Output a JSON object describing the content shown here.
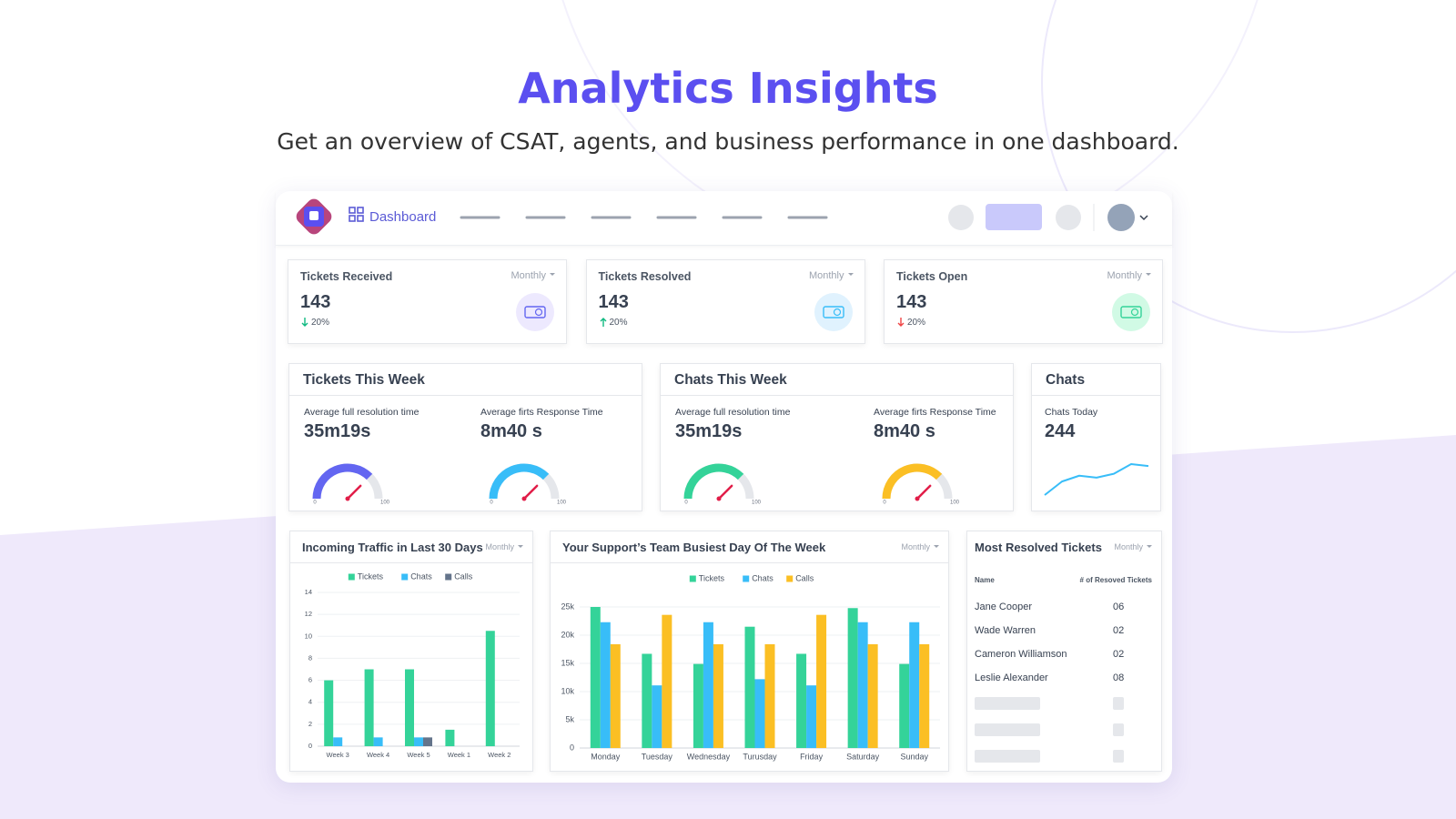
{
  "header": {
    "title": "Analytics Insights",
    "subtitle": "Get an overview of CSAT, agents, and business performance in one dashboard."
  },
  "nav": {
    "active": "Dashboard"
  },
  "stats": [
    {
      "title": "Tickets Received",
      "period": "Monthly",
      "value": "143",
      "change": "20%",
      "trend": "down",
      "trend_color": "#10b981"
    },
    {
      "title": "Tickets Resolved",
      "period": "Monthly",
      "value": "143",
      "change": "20%",
      "trend": "up",
      "trend_color": "#10b981"
    },
    {
      "title": "Tickets Open",
      "period": "Monthly",
      "value": "143",
      "change": "20%",
      "trend": "down",
      "trend_color": "#ef4444"
    }
  ],
  "week_panels": [
    {
      "title": "Tickets This Week",
      "metrics": [
        {
          "label": "Average full resolution time",
          "value": "35m19s",
          "gauge": {
            "min": 0,
            "max": 100,
            "value": 75,
            "color": "#6366f1"
          }
        },
        {
          "label": "Average firts Response Time",
          "value": "8m40 s",
          "gauge": {
            "min": 0,
            "max": 100,
            "value": 75,
            "color": "#38bdf8"
          }
        }
      ]
    },
    {
      "title": "Chats This Week",
      "metrics": [
        {
          "label": "Average full resolution time",
          "value": "35m19s",
          "gauge": {
            "min": 0,
            "max": 100,
            "value": 75,
            "color": "#34d399"
          }
        },
        {
          "label": "Average firts Response Time",
          "value": "8m40 s",
          "gauge": {
            "min": 0,
            "max": 100,
            "value": 75,
            "color": "#fbbf24"
          }
        }
      ]
    }
  ],
  "chats": {
    "title": "Chats",
    "label": "Chats Today",
    "value": "244",
    "trend": [
      0,
      14,
      20,
      18,
      22,
      32,
      30
    ],
    "color": "#38bdf8"
  },
  "chart_data": [
    {
      "type": "bar",
      "title": "Incoming Traffic in Last 30 Days",
      "period": "Monthly",
      "categories": [
        "Week 3",
        "Week 4",
        "Week 5",
        "Week 1",
        "Week 2"
      ],
      "series": [
        {
          "name": "Tickets",
          "color": "#34d399",
          "values": [
            6,
            7,
            7,
            1.5,
            10.5
          ]
        },
        {
          "name": "Chats",
          "color": "#38bdf8",
          "values": [
            0.8,
            0.8,
            0.8,
            0,
            0
          ]
        },
        {
          "name": "Calls",
          "color": "#64748b",
          "values": [
            0,
            0,
            0.8,
            0,
            0
          ]
        }
      ],
      "ylim": [
        0,
        14
      ],
      "yticks": [
        0,
        2,
        4,
        6,
        8,
        10,
        12,
        14
      ],
      "grid": true
    },
    {
      "type": "bar",
      "title": "Your Support’s Team Busiest Day Of The Week",
      "period": "Monthly",
      "categories": [
        "Monday",
        "Tuesday",
        "Wednesday",
        "Turusday",
        "Friday",
        "Saturday",
        "Sunday"
      ],
      "series": [
        {
          "name": "Tickets",
          "color": "#34d399",
          "values": [
            25000,
            16700,
            14900,
            21500,
            16700,
            24800,
            14900
          ]
        },
        {
          "name": "Chats",
          "color": "#38bdf8",
          "values": [
            22300,
            11100,
            22300,
            12200,
            11100,
            22300,
            22300
          ]
        },
        {
          "name": "Calls",
          "color": "#fbbf24",
          "values": [
            18400,
            23600,
            18400,
            18400,
            23600,
            18400,
            18400
          ]
        }
      ],
      "ylim": [
        0,
        25000
      ],
      "yticks": [
        0,
        {
          "value": 5000,
          "label": "5k"
        },
        {
          "value": 10000,
          "label": "10k"
        },
        {
          "value": 15000,
          "label": "15k"
        },
        {
          "value": 20000,
          "label": "20k"
        },
        {
          "value": 25000,
          "label": "25k"
        }
      ],
      "grid": true
    }
  ],
  "table": {
    "title": "Most Resolved Tickets",
    "period": "Monthly",
    "columns": [
      "Name",
      "# of Resoved Tickets"
    ],
    "rows": [
      [
        "Jane Cooper",
        "06"
      ],
      [
        "Wade Warren",
        "02"
      ],
      [
        "Cameron Williamson",
        "02"
      ],
      [
        "Leslie Alexander",
        "08"
      ]
    ]
  }
}
